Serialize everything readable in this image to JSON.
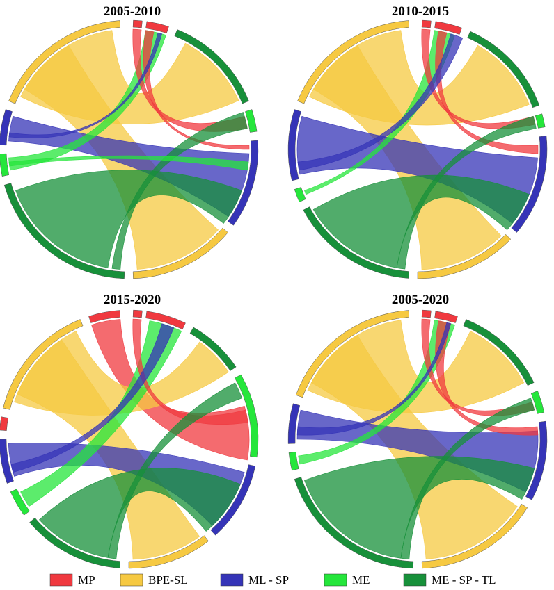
{
  "figure": {
    "categories": [
      {
        "key": "MP",
        "label": "MP",
        "color": "#f0393f"
      },
      {
        "key": "BPE",
        "label": "BPE-SL",
        "color": "#f6c942"
      },
      {
        "key": "MLSP",
        "label": "ML - SP",
        "color": "#3534b7"
      },
      {
        "key": "ME",
        "label": "ME",
        "color": "#25e63b"
      },
      {
        "key": "MESPTL",
        "label": "ME - SP - TL",
        "color": "#17903a"
      }
    ],
    "panels": [
      {
        "title": "2005-2010",
        "arcs": [
          {
            "cat": "MP",
            "a0": 2,
            "a1": 6
          },
          {
            "cat": "MP",
            "a0": 8,
            "a1": 18
          },
          {
            "cat": "MESPTL",
            "a0": 22,
            "a1": 68
          },
          {
            "cat": "ME",
            "a0": 72,
            "a1": 82
          },
          {
            "cat": "MLSP",
            "a0": 86,
            "a1": 126
          },
          {
            "cat": "BPE",
            "a0": 130,
            "a1": 178
          },
          {
            "cat": "MESPTL",
            "a0": 182,
            "a1": 254
          },
          {
            "cat": "ME",
            "a0": 258,
            "a1": 268
          },
          {
            "cat": "MLSP",
            "a0": 272,
            "a1": 288
          },
          {
            "cat": "BPE",
            "a0": 292,
            "a1": 356
          }
        ],
        "chords": [
          {
            "s": [
              296,
              352
            ],
            "t": [
              28,
              66
            ],
            "cat": "BPE"
          },
          {
            "s": [
              300,
              330
            ],
            "t": [
              132,
              176
            ],
            "cat": "BPE"
          },
          {
            "s": [
              274,
              286
            ],
            "t": [
              92,
              124
            ],
            "cat": "MLSP"
          },
          {
            "s": [
              260,
              266
            ],
            "t": [
              8,
              18
            ],
            "cat": "ME"
          },
          {
            "s": [
              190,
              250
            ],
            "t": [
              110,
              128
            ],
            "cat": "MESPTL"
          },
          {
            "s": [
              2,
              6
            ],
            "t": [
              74,
              80
            ],
            "cat": "MP"
          },
          {
            "s": [
              8,
              12
            ],
            "t": [
              88,
              90
            ],
            "cat": "MP"
          },
          {
            "s": [
              184,
              188
            ],
            "t": [
              72,
              80
            ],
            "cat": "MESPTL"
          },
          {
            "s": [
              262,
              264
            ],
            "t": [
              96,
              100
            ],
            "cat": "ME"
          },
          {
            "s": [
              276,
              278
            ],
            "t": [
              14,
              16
            ],
            "cat": "MLSP"
          }
        ]
      },
      {
        "title": "2010-2015",
        "arcs": [
          {
            "cat": "MP",
            "a0": 2,
            "a1": 6
          },
          {
            "cat": "MP",
            "a0": 8,
            "a1": 20
          },
          {
            "cat": "MESPTL",
            "a0": 24,
            "a1": 70
          },
          {
            "cat": "ME",
            "a0": 74,
            "a1": 80
          },
          {
            "cat": "MLSP",
            "a0": 84,
            "a1": 130
          },
          {
            "cat": "BPE",
            "a0": 134,
            "a1": 180
          },
          {
            "cat": "MESPTL",
            "a0": 184,
            "a1": 242
          },
          {
            "cat": "ME",
            "a0": 246,
            "a1": 252
          },
          {
            "cat": "MLSP",
            "a0": 256,
            "a1": 288
          },
          {
            "cat": "BPE",
            "a0": 292,
            "a1": 356
          }
        ],
        "chords": [
          {
            "s": [
              296,
              352
            ],
            "t": [
              30,
              68
            ],
            "cat": "BPE"
          },
          {
            "s": [
              300,
              330
            ],
            "t": [
              136,
              178
            ],
            "cat": "BPE"
          },
          {
            "s": [
              258,
              286
            ],
            "t": [
              94,
              128
            ],
            "cat": "MLSP"
          },
          {
            "s": [
              248,
              250
            ],
            "t": [
              8,
              18
            ],
            "cat": "ME"
          },
          {
            "s": [
              190,
              240
            ],
            "t": [
              112,
              132
            ],
            "cat": "MESPTL"
          },
          {
            "s": [
              2,
              6
            ],
            "t": [
              74,
              78
            ],
            "cat": "MP"
          },
          {
            "s": [
              10,
              14
            ],
            "t": [
              88,
              92
            ],
            "cat": "MP"
          },
          {
            "s": [
              186,
              190
            ],
            "t": [
              74,
              80
            ],
            "cat": "MESPTL"
          },
          {
            "s": [
              260,
              264
            ],
            "t": [
              16,
              22
            ],
            "cat": "MLSP"
          }
        ]
      },
      {
        "title": "2015-2020",
        "arcs": [
          {
            "cat": "MP",
            "a0": 2,
            "a1": 6
          },
          {
            "cat": "MP",
            "a0": 8,
            "a1": 26
          },
          {
            "cat": "MESPTL",
            "a0": 30,
            "a1": 56
          },
          {
            "cat": "ME",
            "a0": 60,
            "a1": 98
          },
          {
            "cat": "MLSP",
            "a0": 102,
            "a1": 138
          },
          {
            "cat": "BPE",
            "a0": 142,
            "a1": 180
          },
          {
            "cat": "MESPTL",
            "a0": 184,
            "a1": 230
          },
          {
            "cat": "ME",
            "a0": 234,
            "a1": 246
          },
          {
            "cat": "MLSP",
            "a0": 250,
            "a1": 270
          },
          {
            "cat": "MP",
            "a0": 274,
            "a1": 280
          },
          {
            "cat": "BPE",
            "a0": 284,
            "a1": 338
          },
          {
            "cat": "MP",
            "a0": 342,
            "a1": 356
          }
        ],
        "chords": [
          {
            "s": [
              342,
              356
            ],
            "t": [
              74,
              100
            ],
            "cat": "MP"
          },
          {
            "s": [
              288,
              334
            ],
            "t": [
              36,
              56
            ],
            "cat": "BPE"
          },
          {
            "s": [
              292,
              326
            ],
            "t": [
              144,
              178
            ],
            "cat": "BPE"
          },
          {
            "s": [
              252,
              268
            ],
            "t": [
              106,
              136
            ],
            "cat": "MLSP"
          },
          {
            "s": [
              236,
              244
            ],
            "t": [
              10,
              26
            ],
            "cat": "ME"
          },
          {
            "s": [
              190,
              228
            ],
            "t": [
              112,
              140
            ],
            "cat": "MESPTL"
          },
          {
            "s": [
              2,
              6
            ],
            "t": [
              76,
              82
            ],
            "cat": "MP"
          },
          {
            "s": [
              186,
              190
            ],
            "t": [
              62,
              70
            ],
            "cat": "MESPTL"
          },
          {
            "s": [
              254,
              258
            ],
            "t": [
              16,
              22
            ],
            "cat": "MLSP"
          }
        ]
      },
      {
        "title": "2005-2020",
        "arcs": [
          {
            "cat": "MP",
            "a0": 2,
            "a1": 6
          },
          {
            "cat": "MP",
            "a0": 8,
            "a1": 18
          },
          {
            "cat": "MESPTL",
            "a0": 22,
            "a1": 64
          },
          {
            "cat": "ME",
            "a0": 68,
            "a1": 78
          },
          {
            "cat": "MLSP",
            "a0": 82,
            "a1": 118
          },
          {
            "cat": "BPE",
            "a0": 122,
            "a1": 178
          },
          {
            "cat": "MESPTL",
            "a0": 182,
            "a1": 252
          },
          {
            "cat": "ME",
            "a0": 256,
            "a1": 264
          },
          {
            "cat": "MLSP",
            "a0": 268,
            "a1": 286
          },
          {
            "cat": "BPE",
            "a0": 290,
            "a1": 356
          }
        ],
        "chords": [
          {
            "s": [
              294,
              352
            ],
            "t": [
              26,
              62
            ],
            "cat": "BPE"
          },
          {
            "s": [
              298,
              330
            ],
            "t": [
              124,
              176
            ],
            "cat": "BPE"
          },
          {
            "s": [
              270,
              284
            ],
            "t": [
              86,
              116
            ],
            "cat": "MLSP"
          },
          {
            "s": [
              258,
              262
            ],
            "t": [
              8,
              18
            ],
            "cat": "ME"
          },
          {
            "s": [
              188,
              250
            ],
            "t": [
              104,
              120
            ],
            "cat": "MESPTL"
          },
          {
            "s": [
              2,
              6
            ],
            "t": [
              72,
              76
            ],
            "cat": "MP"
          },
          {
            "s": [
              10,
              16
            ],
            "t": [
              84,
              88
            ],
            "cat": "MP"
          },
          {
            "s": [
              184,
              188
            ],
            "t": [
              70,
              76
            ],
            "cat": "MESPTL"
          },
          {
            "s": [
              272,
              276
            ],
            "t": [
              14,
              16
            ],
            "cat": "MLSP"
          }
        ]
      }
    ]
  }
}
